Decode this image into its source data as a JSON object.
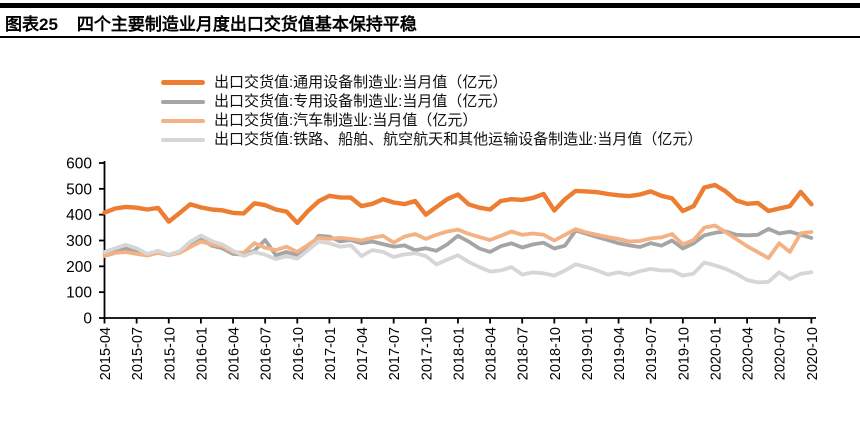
{
  "header": {
    "tag": "图表25",
    "title": "四个主要制造业月度出口交货值基本保持平稳"
  },
  "chart_data": {
    "type": "line",
    "title": "四个主要制造业月度出口交货值基本保持平稳",
    "xlabel": "",
    "ylabel": "",
    "ylim": [
      0,
      600
    ],
    "yticks": [
      0,
      100,
      200,
      300,
      400,
      500,
      600
    ],
    "x_tick_every": 3,
    "grid": false,
    "legend_position": "top-center",
    "axis_color": "#000000",
    "x": [
      "2015-04",
      "2015-05",
      "2015-06",
      "2015-07",
      "2015-08",
      "2015-09",
      "2015-10",
      "2015-11",
      "2015-12",
      "2016-01",
      "2016-02",
      "2016-03",
      "2016-04",
      "2016-05",
      "2016-06",
      "2016-07",
      "2016-08",
      "2016-09",
      "2016-10",
      "2016-11",
      "2016-12",
      "2017-01",
      "2017-02",
      "2017-03",
      "2017-04",
      "2017-05",
      "2017-06",
      "2017-07",
      "2017-08",
      "2017-09",
      "2017-10",
      "2017-11",
      "2017-12",
      "2018-01",
      "2018-02",
      "2018-03",
      "2018-04",
      "2018-05",
      "2018-06",
      "2018-07",
      "2018-08",
      "2018-09",
      "2018-10",
      "2018-11",
      "2018-12",
      "2019-01",
      "2019-02",
      "2019-03",
      "2019-04",
      "2019-05",
      "2019-06",
      "2019-07",
      "2019-08",
      "2019-09",
      "2019-10",
      "2019-11",
      "2019-12",
      "2020-01",
      "2020-02",
      "2020-03",
      "2020-04",
      "2020-05",
      "2020-06",
      "2020-07",
      "2020-08",
      "2020-09",
      "2020-10"
    ],
    "series": [
      {
        "name": "出口交货值:通用设备制造业:当月值（亿元）",
        "color": "#ED7D31",
        "values": [
          408,
          424,
          430,
          427,
          420,
          426,
          373,
          406,
          440,
          428,
          420,
          417,
          407,
          405,
          444,
          437,
          420,
          412,
          368,
          414,
          452,
          473,
          467,
          466,
          433,
          442,
          460,
          447,
          441,
          453,
          400,
          430,
          460,
          478,
          440,
          427,
          420,
          453,
          460,
          457,
          465,
          480,
          416,
          460,
          492,
          490,
          487,
          480,
          475,
          472,
          478,
          490,
          473,
          463,
          414,
          433,
          505,
          515,
          490,
          455,
          442,
          445,
          414,
          424,
          433,
          488,
          440
        ]
      },
      {
        "name": "出口交货值:专用设备制造业:当月值（亿元）",
        "color": "#A5A5A5",
        "values": [
          253,
          260,
          270,
          260,
          245,
          258,
          243,
          255,
          290,
          309,
          280,
          270,
          248,
          245,
          260,
          302,
          243,
          256,
          243,
          269,
          318,
          315,
          296,
          302,
          289,
          296,
          286,
          276,
          281,
          263,
          270,
          260,
          285,
          318,
          296,
          269,
          256,
          278,
          289,
          273,
          285,
          291,
          269,
          280,
          339,
          326,
          313,
          302,
          289,
          281,
          275,
          290,
          280,
          300,
          269,
          289,
          320,
          330,
          335,
          322,
          320,
          322,
          345,
          327,
          334,
          322,
          310
        ]
      },
      {
        "name": "出口交货值:汽车制造业:当月值（亿元）",
        "color": "#F4B183",
        "values": [
          240,
          252,
          255,
          248,
          242,
          252,
          243,
          252,
          275,
          296,
          285,
          278,
          255,
          252,
          290,
          272,
          263,
          276,
          256,
          283,
          310,
          306,
          310,
          306,
          300,
          310,
          318,
          292,
          315,
          325,
          306,
          322,
          335,
          342,
          326,
          313,
          302,
          318,
          335,
          322,
          327,
          322,
          300,
          322,
          344,
          331,
          322,
          313,
          306,
          296,
          298,
          308,
          312,
          325,
          285,
          302,
          350,
          358,
          332,
          305,
          278,
          255,
          232,
          289,
          256,
          328,
          333
        ]
      },
      {
        "name": "出口交货值:铁路、船舶、航空航天和其他运输设备制造业:当月值（亿元）",
        "color": "#D6D6D6",
        "values": [
          255,
          270,
          283,
          270,
          248,
          260,
          245,
          258,
          295,
          319,
          298,
          285,
          260,
          240,
          255,
          245,
          228,
          240,
          230,
          263,
          296,
          289,
          276,
          281,
          240,
          263,
          256,
          236,
          246,
          251,
          240,
          207,
          226,
          243,
          217,
          197,
          180,
          184,
          197,
          168,
          177,
          173,
          164,
          184,
          208,
          197,
          184,
          168,
          177,
          168,
          181,
          190,
          184,
          184,
          164,
          172,
          215,
          204,
          190,
          171,
          147,
          138,
          140,
          177,
          151,
          171,
          177
        ]
      }
    ]
  }
}
